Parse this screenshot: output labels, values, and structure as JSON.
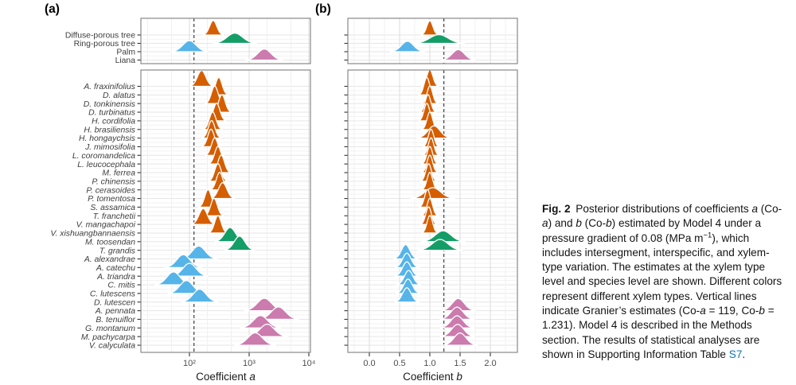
{
  "figure": {
    "panel_a_label": "(a)",
    "panel_b_label": "(b)"
  },
  "colors": {
    "diffuse": "#D55E00",
    "ring": "#149E67",
    "palm": "#56B4E9",
    "liana": "#CB7BAD",
    "reference_line": "#4D4D4D",
    "link": "#1173B4"
  },
  "chart_data": {
    "type": "ridgeline",
    "description": "Posterior distributions (density ridges) of coefficients a and b per xylem type and per species",
    "granier_estimates": {
      "co_a": 119,
      "co_b": 1.231
    },
    "panels": [
      {
        "id": "a",
        "axis_title": [
          {
            "t": "Coefficient ",
            "s": "n"
          },
          {
            "t": "a",
            "s": "i"
          }
        ],
        "scale": "log10",
        "tick_values": [
          100,
          1000,
          10000
        ],
        "tick_labels": [
          "10²",
          "10³",
          "10⁴"
        ],
        "minor_values": [
          20,
          50,
          200,
          500,
          2000,
          5000
        ],
        "xlim": [
          15,
          10700
        ],
        "reference_value": 119
      },
      {
        "id": "b",
        "axis_title": [
          {
            "t": "Coefficient ",
            "s": "n"
          },
          {
            "t": "b",
            "s": "i"
          }
        ],
        "scale": "linear",
        "tick_values": [
          0,
          0.5,
          1,
          1.5,
          2
        ],
        "tick_labels": [
          "0.0",
          "0.5",
          "1.0",
          "1.5",
          "2.0"
        ],
        "minor_values": [
          -0.25,
          0.25,
          0.75,
          1.25,
          1.75,
          2.25
        ],
        "xlim": [
          -0.36,
          2.47
        ],
        "reference_value": 1.231
      }
    ],
    "xylem_types": [
      {
        "label": "Diffuse-porous tree",
        "key": "diffuse",
        "co_a": 250,
        "co_b": 1.0,
        "w_a": 0.06,
        "w_b": 0.05
      },
      {
        "label": "Ring-porous tree",
        "key": "ring",
        "co_a": 575,
        "co_b": 1.15,
        "w_a": 0.13,
        "w_b": 0.15
      },
      {
        "label": "Palm",
        "key": "palm",
        "co_a": 100,
        "co_b": 0.63,
        "w_a": 0.11,
        "w_b": 0.1
      },
      {
        "label": "Liana",
        "key": "liana",
        "co_a": 1800,
        "co_b": 1.47,
        "w_a": 0.11,
        "w_b": 0.1
      }
    ],
    "species": [
      {
        "label": "A. fraxinifolius",
        "key": "diffuse",
        "co_a": 160,
        "co_b": 1.0,
        "w_a": 0.07,
        "w_b": 0.05
      },
      {
        "label": "D. alatus",
        "key": "diffuse",
        "co_a": 310,
        "co_b": 0.95,
        "w_a": 0.055,
        "w_b": 0.045
      },
      {
        "label": "D. tonkinensis",
        "key": "diffuse",
        "co_a": 265,
        "co_b": 1.0,
        "w_a": 0.055,
        "w_b": 0.045
      },
      {
        "label": "D. turbinatus",
        "key": "diffuse",
        "co_a": 350,
        "co_b": 0.97,
        "w_a": 0.055,
        "w_b": 0.045
      },
      {
        "label": "H. cordifolia",
        "key": "diffuse",
        "co_a": 285,
        "co_b": 0.95,
        "w_a": 0.055,
        "w_b": 0.045
      },
      {
        "label": "H. brasiliensis",
        "key": "diffuse",
        "co_a": 245,
        "co_b": 1.0,
        "w_a": 0.055,
        "w_b": 0.045
      },
      {
        "label": "H. hongaychsis",
        "key": "diffuse",
        "co_a": 235,
        "co_b": 1.07,
        "w_a": 0.055,
        "w_b": 0.1
      },
      {
        "label": "J. mimosifolia",
        "key": "diffuse",
        "co_a": 230,
        "co_b": 1.02,
        "w_a": 0.055,
        "w_b": 0.045
      },
      {
        "label": "L. coromandelica",
        "key": "diffuse",
        "co_a": 265,
        "co_b": 1.02,
        "w_a": 0.055,
        "w_b": 0.045
      },
      {
        "label": "L. leucocephala",
        "key": "diffuse",
        "co_a": 300,
        "co_b": 1.0,
        "w_a": 0.055,
        "w_b": 0.045
      },
      {
        "label": "M. ferrea",
        "key": "diffuse",
        "co_a": 340,
        "co_b": 1.0,
        "w_a": 0.055,
        "w_b": 0.045
      },
      {
        "label": "P. chinensis",
        "key": "diffuse",
        "co_a": 300,
        "co_b": 0.98,
        "w_a": 0.055,
        "w_b": 0.045
      },
      {
        "label": "P. cerasoides",
        "key": "diffuse",
        "co_a": 320,
        "co_b": 1.0,
        "w_a": 0.055,
        "w_b": 0.045
      },
      {
        "label": "P. tomentosa",
        "key": "diffuse",
        "co_a": 360,
        "co_b": 1.05,
        "w_a": 0.07,
        "w_b": 0.13
      },
      {
        "label": "S. assamica",
        "key": "diffuse",
        "co_a": 205,
        "co_b": 0.96,
        "w_a": 0.055,
        "w_b": 0.045
      },
      {
        "label": "T. franchetii",
        "key": "diffuse",
        "co_a": 258,
        "co_b": 1.0,
        "w_a": 0.055,
        "w_b": 0.045
      },
      {
        "label": "V. mangachapoi",
        "key": "diffuse",
        "co_a": 170,
        "co_b": 0.98,
        "w_a": 0.07,
        "w_b": 0.045
      },
      {
        "label": "V. xishuangbannaensis",
        "key": "diffuse",
        "co_a": 300,
        "co_b": 1.0,
        "w_a": 0.055,
        "w_b": 0.045
      },
      {
        "label": "M. toosendan",
        "key": "ring",
        "co_a": 480,
        "co_b": 1.22,
        "w_a": 0.09,
        "w_b": 0.13
      },
      {
        "label": "T. grandis",
        "key": "ring",
        "co_a": 690,
        "co_b": 1.17,
        "w_a": 0.09,
        "w_b": 0.13
      },
      {
        "label": "A. alexandrae",
        "key": "palm",
        "co_a": 143,
        "co_b": 0.6,
        "w_a": 0.11,
        "w_b": 0.07
      },
      {
        "label": "A. catechu",
        "key": "palm",
        "co_a": 79,
        "co_b": 0.62,
        "w_a": 0.11,
        "w_b": 0.07
      },
      {
        "label": "A. triandra",
        "key": "palm",
        "co_a": 100,
        "co_b": 0.62,
        "w_a": 0.11,
        "w_b": 0.07
      },
      {
        "label": "C. mitis",
        "key": "palm",
        "co_a": 54,
        "co_b": 0.65,
        "w_a": 0.11,
        "w_b": 0.07
      },
      {
        "label": "C. lutescens",
        "key": "palm",
        "co_a": 89,
        "co_b": 0.64,
        "w_a": 0.11,
        "w_b": 0.07
      },
      {
        "label": "D. lutescen",
        "key": "palm",
        "co_a": 148,
        "co_b": 0.62,
        "w_a": 0.11,
        "w_b": 0.07
      },
      {
        "label": "A. pennata",
        "key": "liana",
        "co_a": 1800,
        "co_b": 1.47,
        "w_a": 0.12,
        "w_b": 0.1
      },
      {
        "label": "B. tenuiflor",
        "key": "liana",
        "co_a": 3100,
        "co_b": 1.45,
        "w_a": 0.12,
        "w_b": 0.1
      },
      {
        "label": "G. montanum",
        "key": "liana",
        "co_a": 1550,
        "co_b": 1.45,
        "w_a": 0.12,
        "w_b": 0.1
      },
      {
        "label": "M. pachycarpa",
        "key": "liana",
        "co_a": 2000,
        "co_b": 1.46,
        "w_a": 0.12,
        "w_b": 0.1
      },
      {
        "label": "V. calyculata",
        "key": "liana",
        "co_a": 1260,
        "co_b": 1.5,
        "w_a": 0.12,
        "w_b": 0.1
      }
    ]
  },
  "caption": {
    "segments": [
      {
        "t": "Fig. 2",
        "s": "b"
      },
      {
        "t": " Posterior distributions of coefficients ",
        "s": "n"
      },
      {
        "t": "a",
        "s": "i"
      },
      {
        "t": " (Co-",
        "s": "n"
      },
      {
        "t": "a",
        "s": "i"
      },
      {
        "t": ") and ",
        "s": "n"
      },
      {
        "t": "b",
        "s": "i"
      },
      {
        "t": " (Co-",
        "s": "n"
      },
      {
        "t": "b",
        "s": "i"
      },
      {
        "t": ") estimated by Model 4 under a pressure gradient of 0.08 (MPa m",
        "s": "n"
      },
      {
        "t": "−1",
        "s": "sup"
      },
      {
        "t": "), which includes intersegment, interspecific, and xylem-type variation. The estimates at the xylem type level and species level are shown. Different colors represent different xylem types. Vertical lines indicate Granier’s estimates (Co-",
        "s": "n"
      },
      {
        "t": "a",
        "s": "i"
      },
      {
        "t": " = 119, Co-",
        "s": "n"
      },
      {
        "t": "b",
        "s": "i"
      },
      {
        "t": " = 1.231). Model 4 is described in the Methods section. The results of statistical analyses are shown in Supporting Information Table ",
        "s": "n"
      },
      {
        "t": "S7",
        "s": "link"
      },
      {
        "t": ".",
        "s": "n"
      }
    ]
  }
}
